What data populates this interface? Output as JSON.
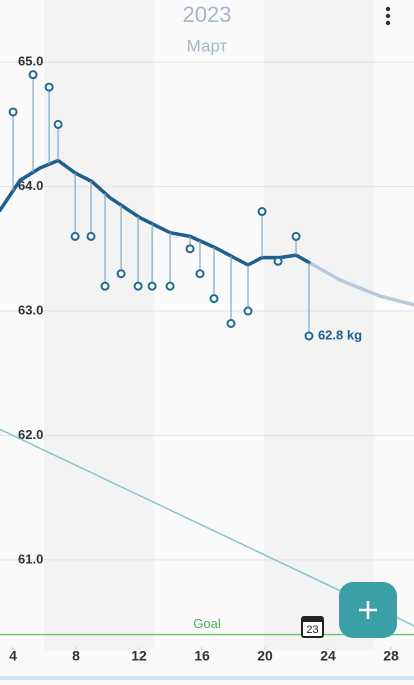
{
  "header": {
    "year": "2023",
    "month": "Март"
  },
  "calendar_day": "23",
  "chart_data": {
    "type": "line",
    "xlim": [
      3.17,
      29.46
    ],
    "ylim": [
      60.3,
      65.5
    ],
    "xticks": [
      4,
      8,
      12,
      16,
      20,
      24,
      28
    ],
    "yticks": [
      {
        "value": 61,
        "label": "61.0"
      },
      {
        "value": 62,
        "label": "62.0"
      },
      {
        "value": 63,
        "label": "63.0"
      },
      {
        "value": 64,
        "label": "64.0"
      },
      {
        "value": 65,
        "label": "65.0"
      }
    ],
    "grid": true,
    "goal": {
      "label": "Goal",
      "value": 60.4,
      "color": "#6cc36c"
    },
    "series": [
      {
        "type": "line",
        "color": "#86c5cc",
        "x": [
          3.17,
          29.46
        ],
        "values": [
          62.05,
          60.47
        ]
      },
      {
        "type": "line",
        "color": "#b8c9dc",
        "x": [
          22.79,
          24.76,
          27.3,
          29.46
        ],
        "values": [
          63.39,
          63.25,
          63.12,
          63.05
        ]
      },
      {
        "type": "line",
        "color": "#1d5f8f",
        "x": [
          3.17,
          4.44,
          5.71,
          6.86,
          7.94,
          9.02,
          10.16,
          12.06,
          13.97,
          15.24,
          16.83,
          18.92,
          19.81,
          20.95,
          21.97,
          22.79
        ],
        "values": [
          63.81,
          64.05,
          64.15,
          64.21,
          64.11,
          64.04,
          63.91,
          63.75,
          63.63,
          63.6,
          63.51,
          63.37,
          63.43,
          63.43,
          63.45,
          63.39
        ]
      },
      {
        "type": "scatter",
        "color": "#1f6b94",
        "x": [
          4.0,
          5.27,
          6.29,
          6.86,
          7.94,
          8.95,
          9.84,
          10.86,
          11.94,
          12.83,
          13.97,
          15.24,
          15.87,
          16.76,
          17.84,
          18.92,
          19.81,
          20.83,
          21.97,
          22.79
        ],
        "values": [
          64.6,
          64.9,
          64.8,
          64.5,
          63.6,
          63.6,
          63.2,
          63.3,
          63.2,
          63.2,
          63.2,
          63.5,
          63.3,
          63.1,
          62.9,
          63.0,
          63.8,
          63.4,
          63.6,
          62.8
        ],
        "value_labels": [
          null,
          null,
          null,
          null,
          null,
          null,
          null,
          null,
          null,
          null,
          null,
          null,
          null,
          null,
          null,
          null,
          null,
          null,
          null,
          "62.8 kg"
        ]
      }
    ]
  }
}
